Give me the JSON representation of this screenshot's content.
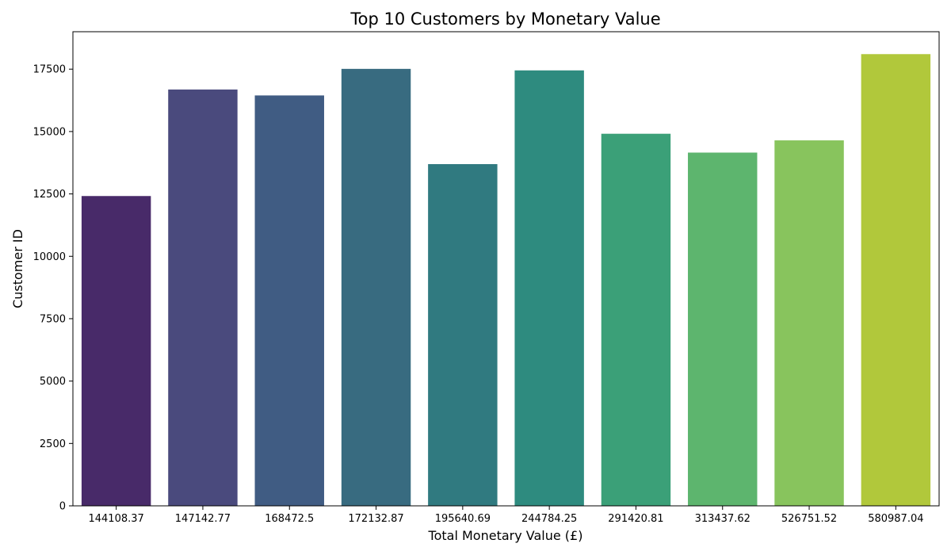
{
  "chart_data": {
    "type": "bar",
    "title": "Top 10 Customers by Monetary Value",
    "xlabel": "Total Monetary Value (£)",
    "ylabel": "Customer ID",
    "categories": [
      "144108.37",
      "147142.77",
      "168472.5",
      "172132.87",
      "195640.69",
      "244784.25",
      "291420.81",
      "313437.62",
      "526751.52",
      "580987.04"
    ],
    "values": [
      12415,
      16684,
      16446,
      17511,
      13694,
      17450,
      14911,
      14156,
      14646,
      18102
    ],
    "ylim": [
      0,
      19000
    ],
    "yticks": [
      "0",
      "2500",
      "5000",
      "7500",
      "10000",
      "12500",
      "15000",
      "17500"
    ],
    "colors": [
      "#482a69",
      "#4a4a7d",
      "#405c83",
      "#386b80",
      "#307a80",
      "#2e8b7f",
      "#3ba078",
      "#5db56e",
      "#88c45d",
      "#b1c83b"
    ],
    "grid": false,
    "legend": false
  }
}
